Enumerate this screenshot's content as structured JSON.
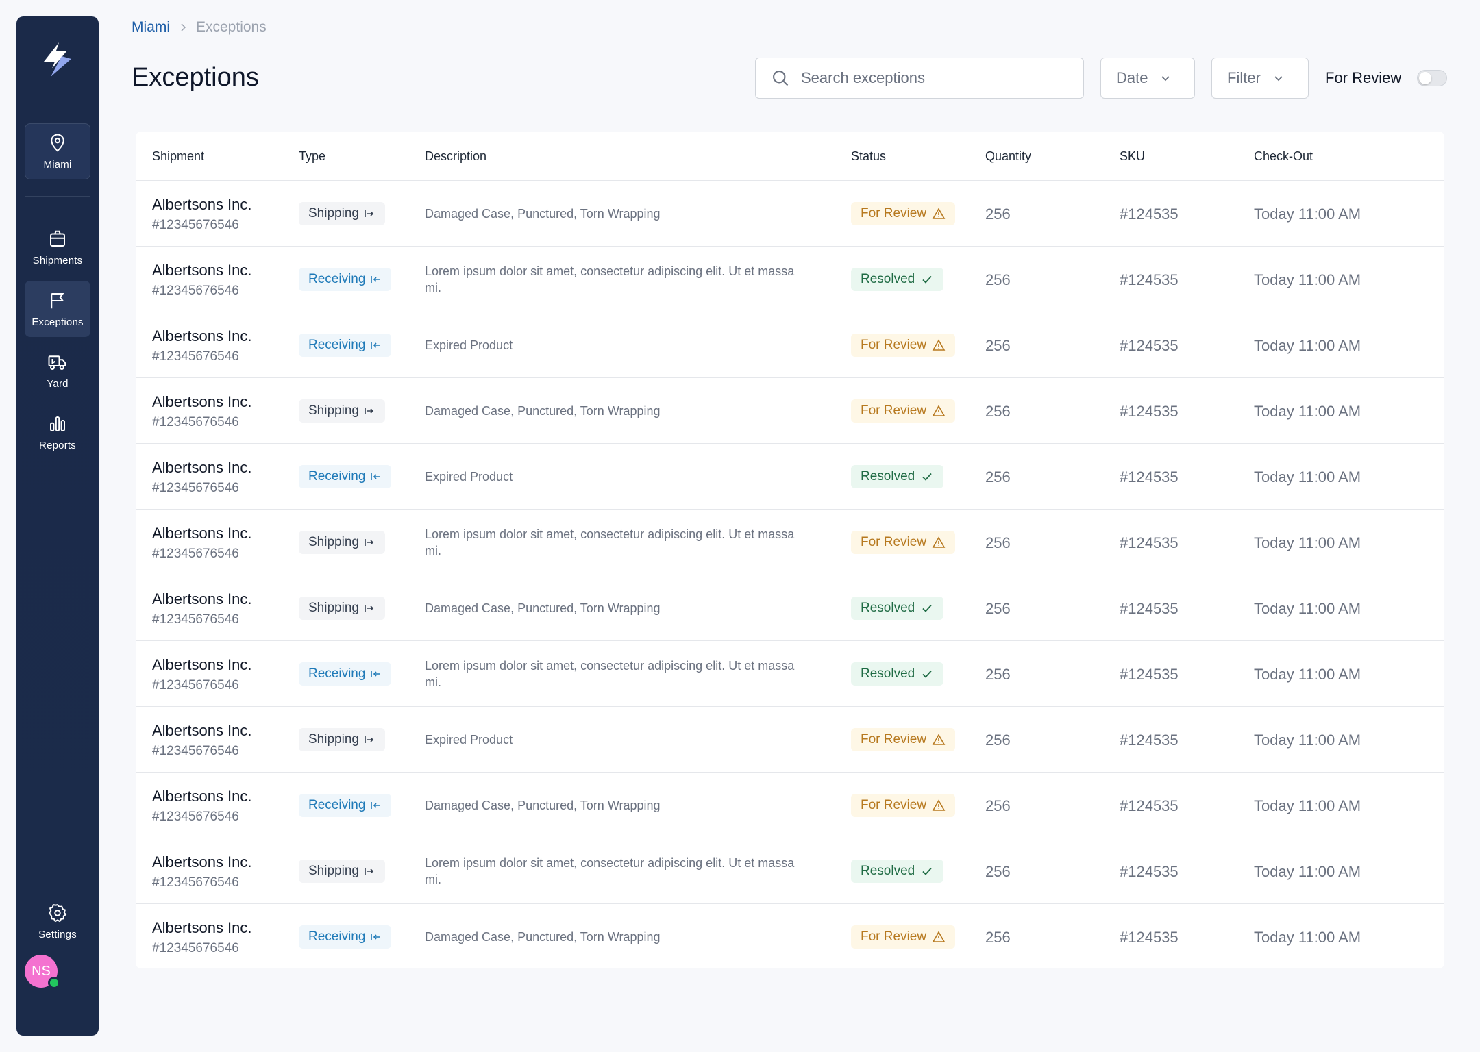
{
  "sidebar": {
    "location": "Miami",
    "items": [
      {
        "label": "Shipments",
        "icon": "package-icon"
      },
      {
        "label": "Exceptions",
        "icon": "flag-icon"
      },
      {
        "label": "Yard",
        "icon": "truck-icon"
      },
      {
        "label": "Reports",
        "icon": "bar-chart-icon"
      }
    ],
    "settings": "Settings",
    "avatar": "NS"
  },
  "breadcrumb": {
    "parent": "Miami",
    "current": "Exceptions"
  },
  "header": {
    "title": "Exceptions",
    "search_placeholder": "Search exceptions",
    "date_label": "Date",
    "filter_label": "Filter",
    "review_toggle_label": "For Review"
  },
  "table": {
    "columns": [
      "Shipment",
      "Type",
      "Description",
      "Status",
      "Quantity",
      "SKU",
      "Check-Out"
    ],
    "rows": [
      {
        "name": "Albertsons Inc.",
        "id": "#12345676546",
        "type": "Shipping",
        "description": "Damaged Case, Punctured, Torn Wrapping",
        "status": "For Review",
        "quantity": "256",
        "sku": "#124535",
        "checkout": "Today 11:00 AM"
      },
      {
        "name": "Albertsons Inc.",
        "id": "#12345676546",
        "type": "Receiving",
        "description": "Lorem ipsum dolor sit amet, consectetur adipiscing elit. Ut et massa mi.",
        "status": "Resolved",
        "quantity": "256",
        "sku": "#124535",
        "checkout": "Today 11:00 AM"
      },
      {
        "name": "Albertsons Inc.",
        "id": "#12345676546",
        "type": "Receiving",
        "description": "Expired Product",
        "status": "For Review",
        "quantity": "256",
        "sku": "#124535",
        "checkout": "Today 11:00 AM"
      },
      {
        "name": "Albertsons Inc.",
        "id": "#12345676546",
        "type": "Shipping",
        "description": "Damaged Case, Punctured, Torn Wrapping",
        "status": "For Review",
        "quantity": "256",
        "sku": "#124535",
        "checkout": "Today 11:00 AM"
      },
      {
        "name": "Albertsons Inc.",
        "id": "#12345676546",
        "type": "Receiving",
        "description": "Expired Product",
        "status": "Resolved",
        "quantity": "256",
        "sku": "#124535",
        "checkout": "Today 11:00 AM"
      },
      {
        "name": "Albertsons Inc.",
        "id": "#12345676546",
        "type": "Shipping",
        "description": "Lorem ipsum dolor sit amet, consectetur adipiscing elit. Ut et massa mi.",
        "status": "For Review",
        "quantity": "256",
        "sku": "#124535",
        "checkout": "Today 11:00 AM"
      },
      {
        "name": "Albertsons Inc.",
        "id": "#12345676546",
        "type": "Shipping",
        "description": "Damaged Case, Punctured, Torn Wrapping",
        "status": "Resolved",
        "quantity": "256",
        "sku": "#124535",
        "checkout": "Today 11:00 AM"
      },
      {
        "name": "Albertsons Inc.",
        "id": "#12345676546",
        "type": "Receiving",
        "description": "Lorem ipsum dolor sit amet, consectetur adipiscing elit. Ut et massa mi.",
        "status": "Resolved",
        "quantity": "256",
        "sku": "#124535",
        "checkout": "Today 11:00 AM"
      },
      {
        "name": "Albertsons Inc.",
        "id": "#12345676546",
        "type": "Shipping",
        "description": "Expired Product",
        "status": "For Review",
        "quantity": "256",
        "sku": "#124535",
        "checkout": "Today 11:00 AM"
      },
      {
        "name": "Albertsons Inc.",
        "id": "#12345676546",
        "type": "Receiving",
        "description": "Damaged Case, Punctured, Torn Wrapping",
        "status": "For Review",
        "quantity": "256",
        "sku": "#124535",
        "checkout": "Today 11:00 AM"
      },
      {
        "name": "Albertsons Inc.",
        "id": "#12345676546",
        "type": "Shipping",
        "description": "Lorem ipsum dolor sit amet, consectetur adipiscing elit. Ut et massa mi.",
        "status": "Resolved",
        "quantity": "256",
        "sku": "#124535",
        "checkout": "Today 11:00 AM"
      },
      {
        "name": "Albertsons Inc.",
        "id": "#12345676546",
        "type": "Receiving",
        "description": "Damaged Case, Punctured, Torn Wrapping",
        "status": "For Review",
        "quantity": "256",
        "sku": "#124535",
        "checkout": "Today 11:00 AM"
      }
    ]
  },
  "colors": {
    "sidebar_bg": "#1b2a49",
    "link": "#1f5fa8",
    "review_bg": "#fef7e6",
    "review_text": "#b7791f",
    "resolved_bg": "#eaf7f0",
    "resolved_text": "#1f6b44",
    "receiving_text": "#1f7ab8"
  }
}
